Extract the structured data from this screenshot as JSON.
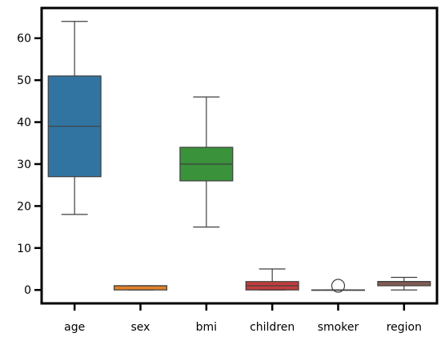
{
  "chart_data": {
    "type": "box",
    "title": "",
    "xlabel": "",
    "ylabel": "",
    "ylim": [
      -3.2,
      67.2
    ],
    "yticks": [
      0,
      10,
      20,
      30,
      40,
      50,
      60
    ],
    "ytick_labels": [
      "0",
      "10",
      "20",
      "30",
      "40",
      "50",
      "60"
    ],
    "grid": false,
    "legend": "none",
    "categories": [
      "age",
      "sex",
      "bmi",
      "children",
      "smoker",
      "region"
    ],
    "boxes": [
      {
        "name": "age",
        "color": "#3274a1",
        "whisker_low": 18,
        "q1": 27,
        "median": 39,
        "q3": 51,
        "whisker_high": 64,
        "outliers": []
      },
      {
        "name": "sex",
        "color": "#e1812c",
        "whisker_low": 0,
        "q1": 0,
        "median": 1,
        "q3": 1,
        "whisker_high": 1,
        "outliers": []
      },
      {
        "name": "bmi",
        "color": "#3a923a",
        "whisker_low": 15,
        "q1": 26,
        "median": 30,
        "q3": 34,
        "whisker_high": 46,
        "outliers": []
      },
      {
        "name": "children",
        "color": "#c03d3e",
        "whisker_low": 0,
        "q1": 0,
        "median": 1,
        "q3": 2,
        "whisker_high": 5,
        "outliers": []
      },
      {
        "name": "smoker",
        "color": "#9372b2",
        "whisker_low": 0,
        "q1": 0,
        "median": 0,
        "q3": 0,
        "whisker_high": 0,
        "outliers": [
          1
        ]
      },
      {
        "name": "region",
        "color": "#845b53",
        "whisker_low": 0,
        "q1": 1,
        "median": 2,
        "q3": 2,
        "whisker_high": 3,
        "outliers": []
      }
    ]
  }
}
